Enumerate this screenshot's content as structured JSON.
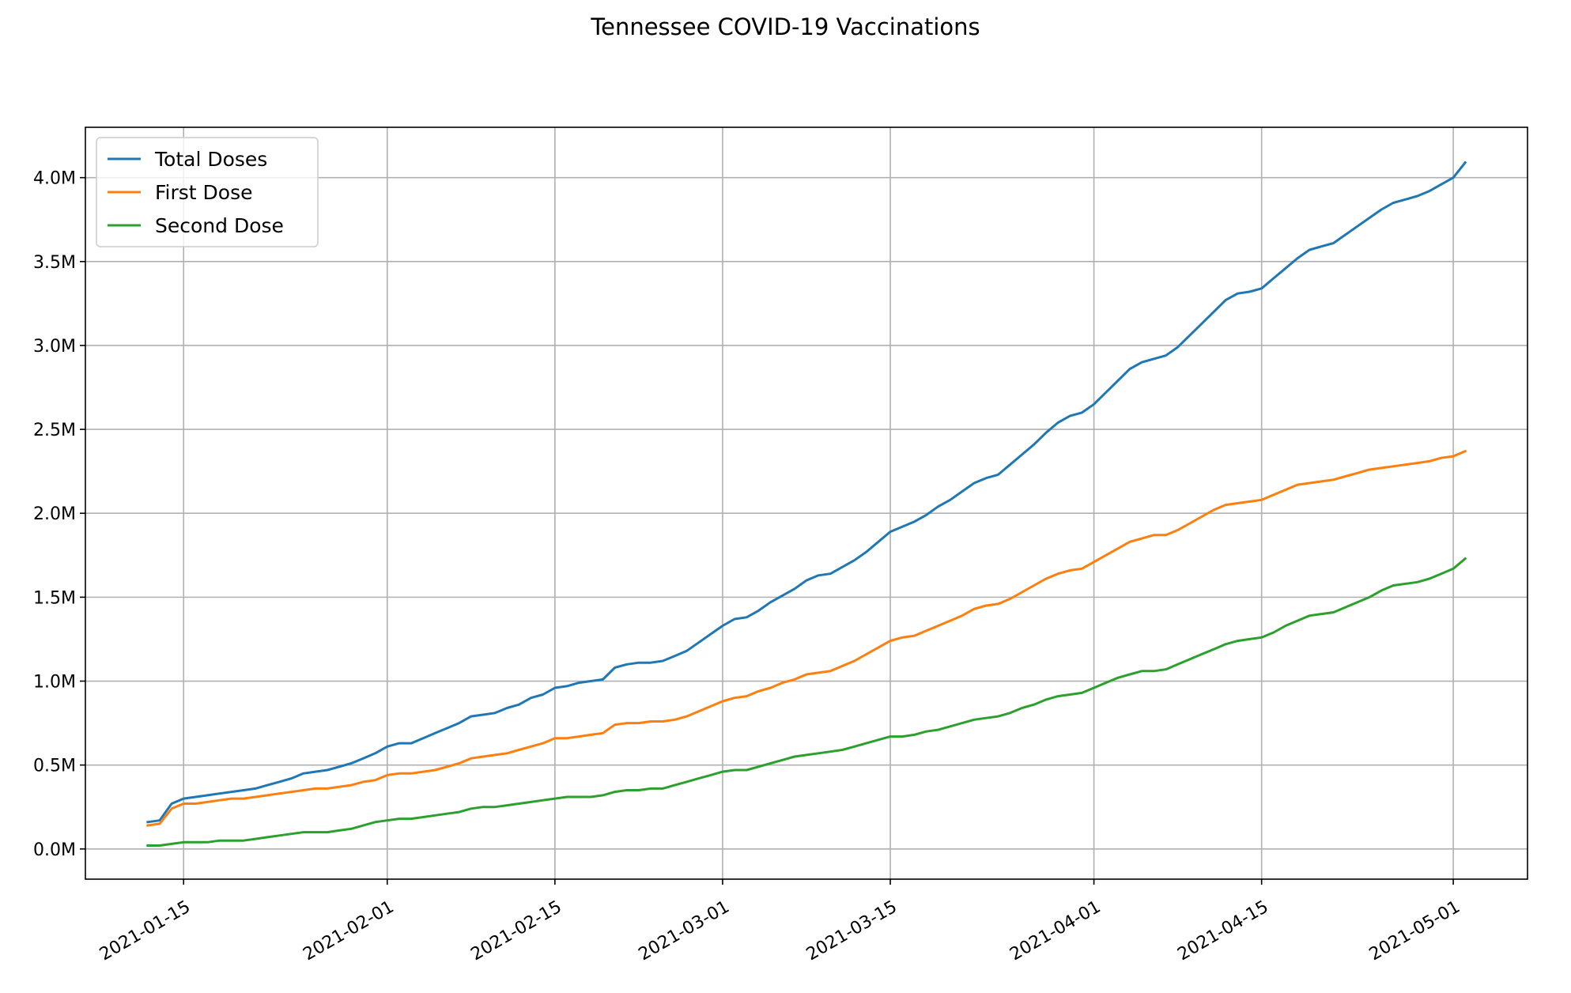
{
  "chart_data": {
    "type": "line",
    "title": "Tennessee COVID-19 Vaccinations",
    "xlabel": "",
    "ylabel": "",
    "grid": true,
    "legend_position": "top-left",
    "x_start": "2021-01-12",
    "x": [
      "2021-01-12",
      "2021-01-13",
      "2021-01-14",
      "2021-01-15",
      "2021-01-16",
      "2021-01-17",
      "2021-01-18",
      "2021-01-19",
      "2021-01-20",
      "2021-01-21",
      "2021-01-22",
      "2021-01-23",
      "2021-01-24",
      "2021-01-25",
      "2021-01-26",
      "2021-01-27",
      "2021-01-28",
      "2021-01-29",
      "2021-01-30",
      "2021-01-31",
      "2021-02-01",
      "2021-02-02",
      "2021-02-03",
      "2021-02-04",
      "2021-02-05",
      "2021-02-06",
      "2021-02-07",
      "2021-02-08",
      "2021-02-09",
      "2021-02-10",
      "2021-02-11",
      "2021-02-12",
      "2021-02-13",
      "2021-02-14",
      "2021-02-15",
      "2021-02-16",
      "2021-02-17",
      "2021-02-18",
      "2021-02-19",
      "2021-02-20",
      "2021-02-21",
      "2021-02-22",
      "2021-02-23",
      "2021-02-24",
      "2021-02-25",
      "2021-02-26",
      "2021-02-27",
      "2021-02-28",
      "2021-03-01",
      "2021-03-02",
      "2021-03-03",
      "2021-03-04",
      "2021-03-05",
      "2021-03-06",
      "2021-03-07",
      "2021-03-08",
      "2021-03-09",
      "2021-03-10",
      "2021-03-11",
      "2021-03-12",
      "2021-03-13",
      "2021-03-14",
      "2021-03-15",
      "2021-03-16",
      "2021-03-17",
      "2021-03-18",
      "2021-03-19",
      "2021-03-20",
      "2021-03-21",
      "2021-03-22",
      "2021-03-23",
      "2021-03-24",
      "2021-03-25",
      "2021-03-26",
      "2021-03-27",
      "2021-03-28",
      "2021-03-29",
      "2021-03-30",
      "2021-03-31",
      "2021-04-01",
      "2021-04-02",
      "2021-04-03",
      "2021-04-04",
      "2021-04-05",
      "2021-04-06",
      "2021-04-07",
      "2021-04-08",
      "2021-04-09",
      "2021-04-10",
      "2021-04-11",
      "2021-04-12",
      "2021-04-13",
      "2021-04-14",
      "2021-04-15",
      "2021-04-16",
      "2021-04-17",
      "2021-04-18",
      "2021-04-19",
      "2021-04-20",
      "2021-04-21",
      "2021-04-22",
      "2021-04-23",
      "2021-04-24",
      "2021-04-25",
      "2021-04-26",
      "2021-04-27",
      "2021-04-28",
      "2021-04-29",
      "2021-04-30",
      "2021-05-01",
      "2021-05-02"
    ],
    "ylim": [
      -0.18,
      4.3
    ],
    "y_ticks": [
      0.0,
      0.5,
      1.0,
      1.5,
      2.0,
      2.5,
      3.0,
      3.5,
      4.0
    ],
    "y_tick_labels": [
      "0.0M",
      "0.5M",
      "1.0M",
      "1.5M",
      "2.0M",
      "2.5M",
      "3.0M",
      "3.5M",
      "4.0M"
    ],
    "x_ticks": [
      "2021-01-15",
      "2021-02-01",
      "2021-02-15",
      "2021-03-01",
      "2021-03-15",
      "2021-04-01",
      "2021-04-15",
      "2021-05-01"
    ],
    "x_tick_labels": [
      "2021-01-15",
      "2021-02-01",
      "2021-02-15",
      "2021-03-01",
      "2021-03-15",
      "2021-04-01",
      "2021-04-15",
      "2021-05-01"
    ],
    "series": [
      {
        "name": "Total Doses",
        "color": "#1f77b4",
        "values": [
          0.16,
          0.17,
          0.27,
          0.3,
          0.31,
          0.32,
          0.33,
          0.34,
          0.35,
          0.36,
          0.38,
          0.4,
          0.42,
          0.45,
          0.46,
          0.47,
          0.49,
          0.51,
          0.54,
          0.57,
          0.61,
          0.63,
          0.63,
          0.66,
          0.69,
          0.72,
          0.75,
          0.79,
          0.8,
          0.81,
          0.84,
          0.86,
          0.9,
          0.92,
          0.96,
          0.97,
          0.99,
          1.0,
          1.01,
          1.08,
          1.1,
          1.11,
          1.11,
          1.12,
          1.15,
          1.18,
          1.23,
          1.28,
          1.33,
          1.37,
          1.38,
          1.42,
          1.47,
          1.51,
          1.55,
          1.6,
          1.63,
          1.64,
          1.68,
          1.72,
          1.77,
          1.83,
          1.89,
          1.92,
          1.95,
          1.99,
          2.04,
          2.08,
          2.13,
          2.18,
          2.21,
          2.23,
          2.29,
          2.35,
          2.41,
          2.48,
          2.54,
          2.58,
          2.6,
          2.65,
          2.72,
          2.79,
          2.86,
          2.9,
          2.92,
          2.94,
          2.99,
          3.06,
          3.13,
          3.2,
          3.27,
          3.31,
          3.32,
          3.34,
          3.4,
          3.46,
          3.52,
          3.57,
          3.59,
          3.61,
          3.66,
          3.71,
          3.76,
          3.81,
          3.85,
          3.87,
          3.89,
          3.92,
          3.96,
          4.0,
          4.09
        ]
      },
      {
        "name": "First Dose",
        "color": "#ff7f0e",
        "values": [
          0.14,
          0.15,
          0.24,
          0.27,
          0.27,
          0.28,
          0.29,
          0.3,
          0.3,
          0.31,
          0.32,
          0.33,
          0.34,
          0.35,
          0.36,
          0.36,
          0.37,
          0.38,
          0.4,
          0.41,
          0.44,
          0.45,
          0.45,
          0.46,
          0.47,
          0.49,
          0.51,
          0.54,
          0.55,
          0.56,
          0.57,
          0.59,
          0.61,
          0.63,
          0.66,
          0.66,
          0.67,
          0.68,
          0.69,
          0.74,
          0.75,
          0.75,
          0.76,
          0.76,
          0.77,
          0.79,
          0.82,
          0.85,
          0.88,
          0.9,
          0.91,
          0.94,
          0.96,
          0.99,
          1.01,
          1.04,
          1.05,
          1.06,
          1.09,
          1.12,
          1.16,
          1.2,
          1.24,
          1.26,
          1.27,
          1.3,
          1.33,
          1.36,
          1.39,
          1.43,
          1.45,
          1.46,
          1.49,
          1.53,
          1.57,
          1.61,
          1.64,
          1.66,
          1.67,
          1.71,
          1.75,
          1.79,
          1.83,
          1.85,
          1.87,
          1.87,
          1.9,
          1.94,
          1.98,
          2.02,
          2.05,
          2.06,
          2.07,
          2.08,
          2.11,
          2.14,
          2.17,
          2.18,
          2.19,
          2.2,
          2.22,
          2.24,
          2.26,
          2.27,
          2.28,
          2.29,
          2.3,
          2.31,
          2.33,
          2.34,
          2.37
        ]
      },
      {
        "name": "Second Dose",
        "color": "#2ca02c",
        "values": [
          0.02,
          0.02,
          0.03,
          0.04,
          0.04,
          0.04,
          0.05,
          0.05,
          0.05,
          0.06,
          0.07,
          0.08,
          0.09,
          0.1,
          0.1,
          0.1,
          0.11,
          0.12,
          0.14,
          0.16,
          0.17,
          0.18,
          0.18,
          0.19,
          0.2,
          0.21,
          0.22,
          0.24,
          0.25,
          0.25,
          0.26,
          0.27,
          0.28,
          0.29,
          0.3,
          0.31,
          0.31,
          0.31,
          0.32,
          0.34,
          0.35,
          0.35,
          0.36,
          0.36,
          0.38,
          0.4,
          0.42,
          0.44,
          0.46,
          0.47,
          0.47,
          0.49,
          0.51,
          0.53,
          0.55,
          0.56,
          0.57,
          0.58,
          0.59,
          0.61,
          0.63,
          0.65,
          0.67,
          0.67,
          0.68,
          0.7,
          0.71,
          0.73,
          0.75,
          0.77,
          0.78,
          0.79,
          0.81,
          0.84,
          0.86,
          0.89,
          0.91,
          0.92,
          0.93,
          0.96,
          0.99,
          1.02,
          1.04,
          1.06,
          1.06,
          1.07,
          1.1,
          1.13,
          1.16,
          1.19,
          1.22,
          1.24,
          1.25,
          1.26,
          1.29,
          1.33,
          1.36,
          1.39,
          1.4,
          1.41,
          1.44,
          1.47,
          1.5,
          1.54,
          1.57,
          1.58,
          1.59,
          1.61,
          1.64,
          1.67,
          1.73
        ]
      }
    ]
  }
}
